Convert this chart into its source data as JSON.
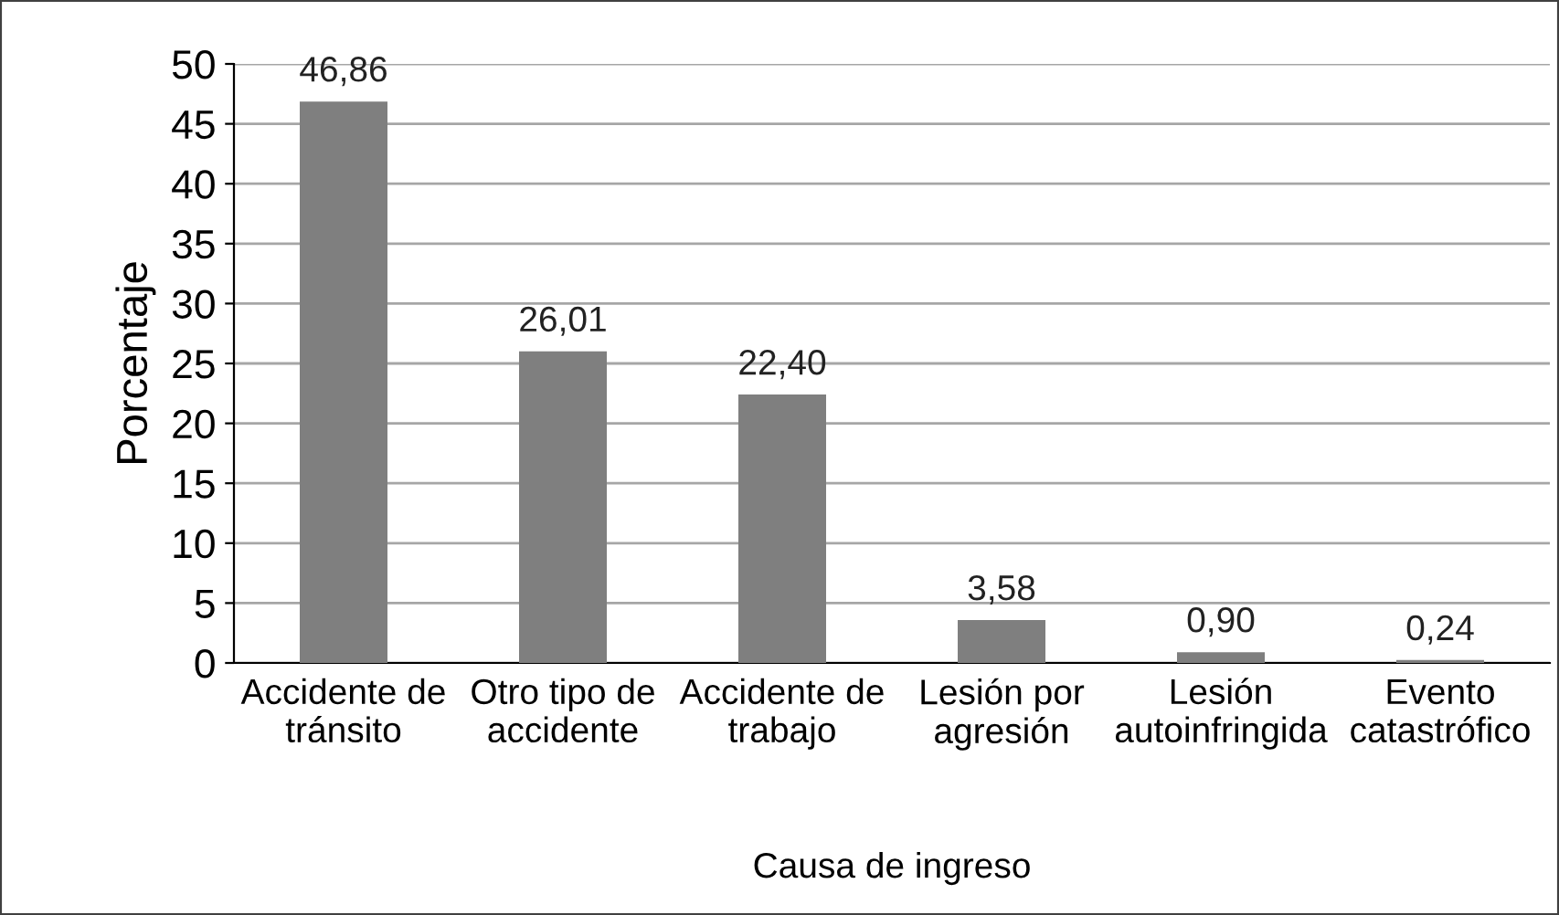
{
  "chart_data": {
    "type": "bar",
    "xlabel": "Causa de ingreso",
    "ylabel": "Porcentaje",
    "categories": [
      "Accidente de\ntránsito",
      "Otro tipo de\naccidente",
      "Accidente de\ntrabajo",
      "Lesión por\nagresión",
      "Lesión\nautoinfringida",
      "Evento\ncatastrófico"
    ],
    "values": [
      46.86,
      26.01,
      22.4,
      3.58,
      0.9,
      0.24
    ],
    "value_labels": [
      "46,86",
      "26,01",
      "22,40",
      "3,58",
      "0,90",
      "0,24"
    ],
    "color": "#7f7f7f",
    "ylim": [
      0,
      50
    ],
    "yticks": [
      0,
      5,
      10,
      15,
      20,
      25,
      30,
      35,
      40,
      45,
      50
    ],
    "grid": "y",
    "legend": false
  }
}
